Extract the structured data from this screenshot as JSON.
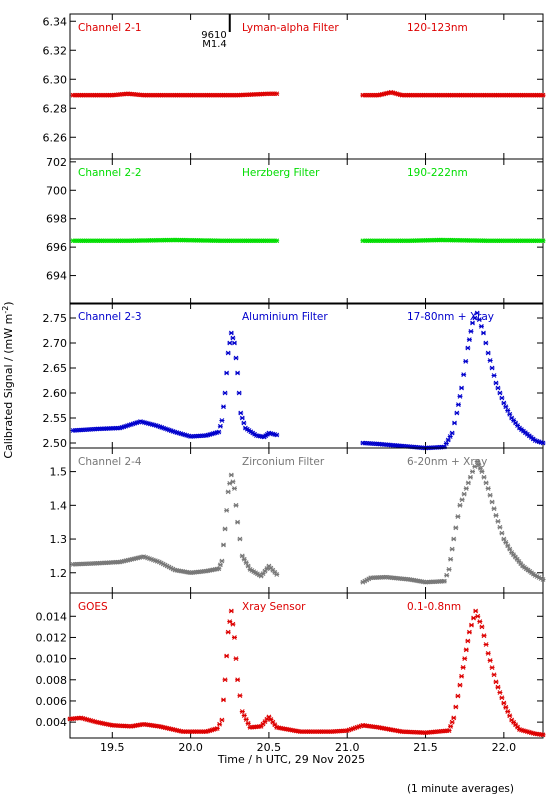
{
  "chart_data": [
    {
      "type": "scatter",
      "labels": [
        "Channel 2-1",
        "Lyman-alpha Filter",
        "120-123nm"
      ],
      "color": "#dd0000",
      "ylim": [
        6.245,
        6.345
      ],
      "yticks": [
        6.26,
        6.28,
        6.3,
        6.32,
        6.34
      ],
      "ytick_labels": [
        "6.26",
        "6.28",
        "6.30",
        "6.32",
        "6.34"
      ],
      "annotation": {
        "x": 20.25,
        "lines": [
          "9610",
          "M1.4"
        ]
      },
      "series": [
        {
          "points": [
            [
              19.25,
              6.289
            ],
            [
              19.5,
              6.289
            ],
            [
              19.6,
              6.29
            ],
            [
              19.7,
              6.289
            ],
            [
              20.0,
              6.289
            ],
            [
              20.3,
              6.289
            ],
            [
              20.5,
              6.29
            ],
            [
              20.55,
              6.29
            ]
          ]
        },
        {
          "points": [
            [
              21.1,
              6.289
            ],
            [
              21.2,
              6.289
            ],
            [
              21.28,
              6.291
            ],
            [
              21.35,
              6.289
            ],
            [
              21.6,
              6.289
            ],
            [
              21.8,
              6.289
            ],
            [
              22.0,
              6.289
            ],
            [
              22.25,
              6.289
            ]
          ]
        }
      ]
    },
    {
      "type": "scatter",
      "labels": [
        "Channel 2-2",
        "Herzberg Filter",
        "190-222nm"
      ],
      "color": "#00dd00",
      "ylim": [
        692,
        702.2
      ],
      "yticks": [
        694,
        696,
        698,
        700,
        702
      ],
      "ytick_labels": [
        "694",
        "696",
        "698",
        "700",
        "702"
      ],
      "series": [
        {
          "points": [
            [
              19.25,
              696.45
            ],
            [
              19.6,
              696.45
            ],
            [
              19.9,
              696.5
            ],
            [
              20.2,
              696.45
            ],
            [
              20.55,
              696.45
            ]
          ]
        },
        {
          "points": [
            [
              21.1,
              696.45
            ],
            [
              21.4,
              696.45
            ],
            [
              21.6,
              696.5
            ],
            [
              21.9,
              696.45
            ],
            [
              22.25,
              696.45
            ]
          ]
        }
      ]
    },
    {
      "type": "scatter",
      "labels": [
        "Channel 2-3",
        "Aluminium Filter",
        "17-80nm + Xray"
      ],
      "color": "#0000cc",
      "ylim": [
        2.49,
        2.78
      ],
      "yticks": [
        2.5,
        2.55,
        2.6,
        2.65,
        2.7,
        2.75
      ],
      "ytick_labels": [
        "2.50",
        "2.55",
        "2.60",
        "2.65",
        "2.70",
        "2.75"
      ],
      "series": [
        {
          "points": [
            [
              19.25,
              2.525
            ],
            [
              19.4,
              2.528
            ],
            [
              19.55,
              2.53
            ],
            [
              19.68,
              2.543
            ],
            [
              19.78,
              2.535
            ],
            [
              19.9,
              2.522
            ],
            [
              20.0,
              2.513
            ],
            [
              20.1,
              2.515
            ],
            [
              20.18,
              2.522
            ],
            [
              20.2,
              2.545
            ],
            [
              20.22,
              2.6
            ],
            [
              20.24,
              2.68
            ],
            [
              20.26,
              2.72
            ],
            [
              20.28,
              2.7
            ],
            [
              20.3,
              2.64
            ],
            [
              20.32,
              2.56
            ],
            [
              20.35,
              2.53
            ],
            [
              20.42,
              2.515
            ],
            [
              20.47,
              2.512
            ],
            [
              20.5,
              2.52
            ],
            [
              20.55,
              2.516
            ]
          ]
        },
        {
          "points": [
            [
              21.1,
              2.5
            ],
            [
              21.2,
              2.498
            ],
            [
              21.35,
              2.494
            ],
            [
              21.5,
              2.49
            ],
            [
              21.62,
              2.492
            ],
            [
              21.67,
              2.52
            ],
            [
              21.7,
              2.56
            ],
            [
              21.73,
              2.61
            ],
            [
              21.77,
              2.69
            ],
            [
              21.8,
              2.74
            ],
            [
              21.83,
              2.76
            ],
            [
              21.87,
              2.72
            ],
            [
              21.9,
              2.68
            ],
            [
              21.95,
              2.62
            ],
            [
              22.0,
              2.58
            ],
            [
              22.05,
              2.55
            ],
            [
              22.1,
              2.53
            ],
            [
              22.2,
              2.505
            ],
            [
              22.25,
              2.5
            ]
          ]
        }
      ]
    },
    {
      "type": "scatter",
      "labels": [
        "Channel 2-4",
        "Zirconium Filter",
        "6-20nm + Xray"
      ],
      "color": "#777777",
      "ylim": [
        1.14,
        1.57
      ],
      "yticks": [
        1.2,
        1.3,
        1.4,
        1.5
      ],
      "ytick_labels": [
        "1.2",
        "1.3",
        "1.4",
        "1.5"
      ],
      "series": [
        {
          "points": [
            [
              19.25,
              1.225
            ],
            [
              19.4,
              1.228
            ],
            [
              19.55,
              1.232
            ],
            [
              19.7,
              1.248
            ],
            [
              19.8,
              1.232
            ],
            [
              19.9,
              1.208
            ],
            [
              20.0,
              1.2
            ],
            [
              20.1,
              1.205
            ],
            [
              20.18,
              1.212
            ],
            [
              20.2,
              1.235
            ],
            [
              20.22,
              1.33
            ],
            [
              20.24,
              1.44
            ],
            [
              20.26,
              1.49
            ],
            [
              20.28,
              1.45
            ],
            [
              20.3,
              1.35
            ],
            [
              20.33,
              1.25
            ],
            [
              20.38,
              1.21
            ],
            [
              20.45,
              1.19
            ],
            [
              20.5,
              1.22
            ],
            [
              20.55,
              1.195
            ]
          ]
        },
        {
          "points": [
            [
              21.1,
              1.172
            ],
            [
              21.15,
              1.185
            ],
            [
              21.25,
              1.187
            ],
            [
              21.4,
              1.18
            ],
            [
              21.5,
              1.172
            ],
            [
              21.62,
              1.175
            ],
            [
              21.65,
              1.21
            ],
            [
              21.68,
              1.3
            ],
            [
              21.72,
              1.4
            ],
            [
              21.76,
              1.45
            ],
            [
              21.8,
              1.5
            ],
            [
              21.83,
              1.53
            ],
            [
              21.86,
              1.5
            ],
            [
              21.9,
              1.45
            ],
            [
              21.95,
              1.37
            ],
            [
              22.0,
              1.3
            ],
            [
              22.05,
              1.26
            ],
            [
              22.12,
              1.22
            ],
            [
              22.2,
              1.192
            ],
            [
              22.25,
              1.18
            ]
          ]
        }
      ]
    },
    {
      "type": "scatter",
      "labels": [
        "GOES",
        "Xray Sensor",
        "0.1-0.8nm"
      ],
      "color": "#dd0000",
      "ylim": [
        0.0025,
        0.0162
      ],
      "yticks": [
        0.004,
        0.006,
        0.008,
        0.01,
        0.012,
        0.014
      ],
      "ytick_labels": [
        "0.004",
        "0.006",
        "0.008",
        "0.010",
        "0.012",
        "0.014"
      ],
      "xlim": [
        19.23,
        22.25
      ],
      "xticks": [
        19.5,
        20.0,
        20.5,
        21.0,
        21.5,
        22.0
      ],
      "xtick_labels": [
        "19.5",
        "20.0",
        "20.5",
        "21.0",
        "21.5",
        "22.0"
      ],
      "xlabel": "Time / h UTC, 29 Nov 2025",
      "series": [
        {
          "points": [
            [
              19.23,
              0.0043
            ],
            [
              19.3,
              0.0044
            ],
            [
              19.4,
              0.004
            ],
            [
              19.5,
              0.0037
            ],
            [
              19.62,
              0.0036
            ],
            [
              19.7,
              0.0038
            ],
            [
              19.8,
              0.0036
            ],
            [
              19.95,
              0.0031
            ],
            [
              20.1,
              0.0031
            ],
            [
              20.17,
              0.0034
            ],
            [
              20.2,
              0.0042
            ],
            [
              20.22,
              0.008
            ],
            [
              20.24,
              0.0125
            ],
            [
              20.26,
              0.0145
            ],
            [
              20.28,
              0.012
            ],
            [
              20.3,
              0.008
            ],
            [
              20.33,
              0.005
            ],
            [
              20.38,
              0.0035
            ],
            [
              20.45,
              0.0036
            ],
            [
              20.5,
              0.0045
            ],
            [
              20.55,
              0.0035
            ],
            [
              20.7,
              0.0031
            ],
            [
              20.9,
              0.0031
            ],
            [
              21.0,
              0.0032
            ],
            [
              21.1,
              0.0037
            ],
            [
              21.2,
              0.0035
            ],
            [
              21.35,
              0.0031
            ],
            [
              21.5,
              0.003
            ],
            [
              21.65,
              0.0032
            ],
            [
              21.68,
              0.0044
            ],
            [
              21.72,
              0.0075
            ],
            [
              21.75,
              0.01
            ],
            [
              21.78,
              0.0125
            ],
            [
              21.82,
              0.0145
            ],
            [
              21.86,
              0.013
            ],
            [
              21.9,
              0.0105
            ],
            [
              21.95,
              0.0078
            ],
            [
              22.0,
              0.0058
            ],
            [
              22.05,
              0.0042
            ],
            [
              22.1,
              0.0033
            ],
            [
              22.2,
              0.0029
            ],
            [
              22.25,
              0.0028
            ]
          ]
        }
      ]
    }
  ],
  "shared": {
    "ylabel": "Calibrated Signal / (mW m",
    "ylabel_sup": "-2",
    "ylabel_close": ")",
    "footer": "(1 minute averages)",
    "xlim": [
      19.23,
      22.25
    ],
    "gap": [
      20.55,
      21.1
    ]
  }
}
